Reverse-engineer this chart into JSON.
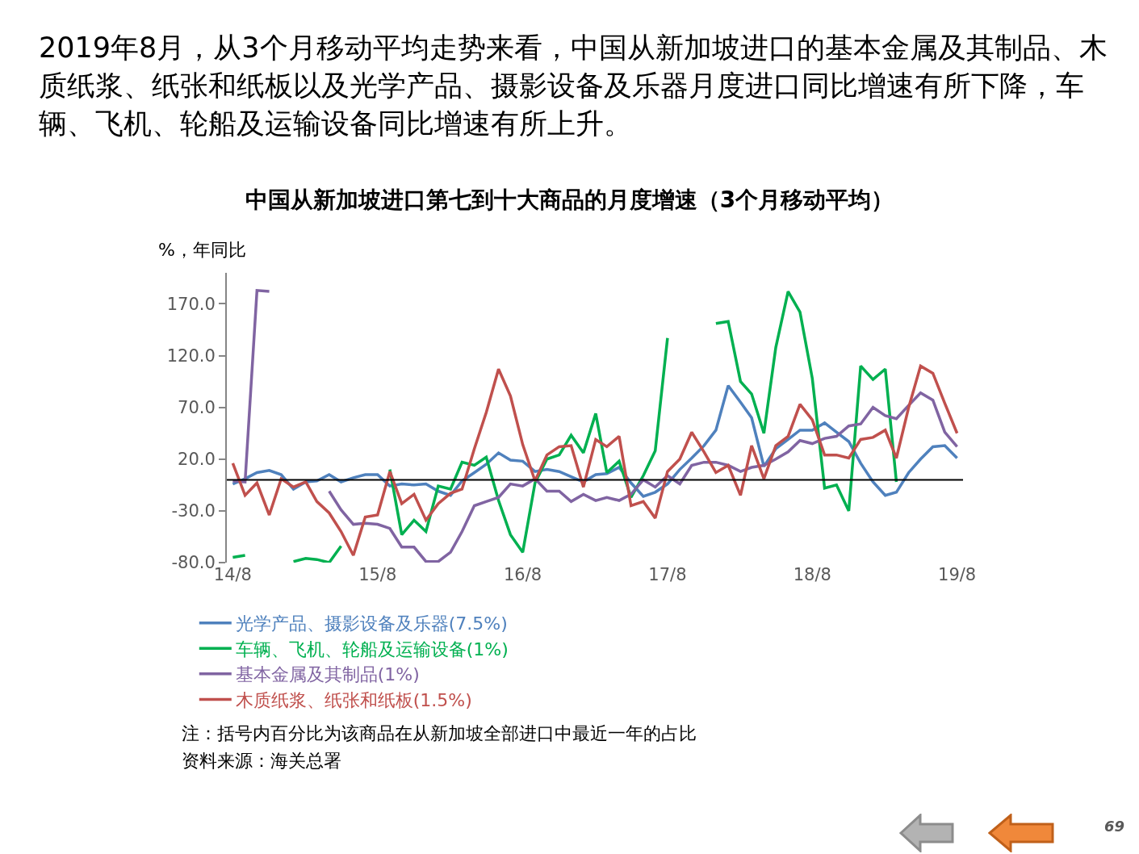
{
  "chart_data": {
    "type": "line",
    "title": "中国从新加坡进口第七到十大商品的月度增速（3个月移动平均）",
    "subtitle": "2019年8月，从3个月移动平均走势来看，中国从新加坡进口的基本金属及其制品、木质纸浆、纸张和纸板以及光学产品、摄影设备及乐器月度进口同比增速有所下降，车辆、飞机、轮船及运输设备同比增速有所上升。",
    "ylabel": "%，年同比",
    "annotations": [
      "注：括号内百分比为该商品在从新加坡全部进口中最近一年的占比",
      "资料来源：海关总署",
      "69"
    ],
    "x": [
      "2014-08",
      "2014-09",
      "2014-10",
      "2014-11",
      "2014-12",
      "2015-01",
      "2015-02",
      "2015-03",
      "2015-04",
      "2015-05",
      "2015-06",
      "2015-07",
      "2015-08",
      "2015-09",
      "2015-10",
      "2015-11",
      "2015-12",
      "2016-01",
      "2016-02",
      "2016-03",
      "2016-04",
      "2016-05",
      "2016-06",
      "2016-07",
      "2016-08",
      "2016-09",
      "2016-10",
      "2016-11",
      "2016-12",
      "2017-01",
      "2017-02",
      "2017-03",
      "2017-04",
      "2017-05",
      "2017-06",
      "2017-07",
      "2017-08",
      "2017-09",
      "2017-10",
      "2017-11",
      "2017-12",
      "2018-01",
      "2018-02",
      "2018-03",
      "2018-04",
      "2018-05",
      "2018-06",
      "2018-07",
      "2018-08",
      "2018-09",
      "2018-10",
      "2018-11",
      "2018-12",
      "2019-01",
      "2019-02",
      "2019-03",
      "2019-04",
      "2019-05",
      "2019-06",
      "2019-07",
      "2019-08"
    ],
    "series": [
      {
        "name": "光学产品、摄影设备及乐器(7.5%)",
        "color": "#4f81bd",
        "values": [
          -4,
          1,
          7,
          9,
          5,
          -9,
          -2,
          -1,
          5,
          -2,
          2,
          5,
          5,
          -6,
          -4,
          -5,
          -4,
          -11,
          -15,
          -1,
          7,
          15,
          26,
          19,
          18,
          8,
          10,
          8,
          3,
          -2,
          5,
          6,
          12,
          -3,
          -16,
          -12,
          -4,
          10,
          21,
          33,
          48,
          91,
          75,
          60,
          13,
          30,
          39,
          48,
          48,
          55,
          46,
          37,
          16,
          -2,
          -15,
          -12,
          7,
          20,
          32,
          33,
          21
        ]
      },
      {
        "name": "车辆、飞机、轮船及运输设备(1%)",
        "color": "#00b050",
        "values": [
          -75,
          -73,
          null,
          null,
          null,
          -79,
          -76,
          -77,
          -80,
          -64,
          null,
          null,
          null,
          10,
          -53,
          -39,
          -50,
          -6,
          -9,
          17,
          14,
          22,
          -20,
          -53,
          -70,
          -3,
          20,
          24,
          43,
          26,
          64,
          7,
          18,
          -17,
          4,
          28,
          137,
          null,
          null,
          null,
          151,
          153,
          95,
          83,
          45,
          128,
          182,
          162,
          98,
          -8,
          -5,
          -30,
          110,
          97,
          107,
          -2,
          null,
          null,
          null,
          null,
          null
        ]
      },
      {
        "name": "基本金属及其制品(1%)",
        "color": "#8064a2",
        "values": [
          -1,
          -2,
          183,
          182,
          null,
          null,
          null,
          null,
          -11,
          -29,
          -43,
          -42,
          -43,
          -47,
          -65,
          -65,
          -79,
          -79,
          -70,
          -50,
          -25,
          -21,
          -17,
          -4,
          -6,
          1,
          -11,
          -11,
          -21,
          -14,
          -20,
          -17,
          -20,
          -14,
          0,
          -7,
          4,
          -4,
          14,
          17,
          17,
          14,
          8,
          12,
          14,
          20,
          27,
          38,
          35,
          40,
          42,
          52,
          54,
          70,
          62,
          59,
          72,
          84,
          77,
          46,
          32
        ]
      },
      {
        "name": "木质纸浆、纸张和纸板(1.5%)",
        "color": "#c0504d",
        "values": [
          16,
          -15,
          -3,
          -34,
          1,
          -7,
          -2,
          -21,
          -32,
          -50,
          -73,
          -36,
          -34,
          8,
          -23,
          -14,
          -39,
          -23,
          -13,
          -9,
          30,
          65,
          107,
          81,
          34,
          -1,
          24,
          32,
          33,
          -7,
          39,
          32,
          42,
          -25,
          -21,
          -37,
          8,
          20,
          46,
          27,
          7,
          14,
          -15,
          33,
          1,
          33,
          42,
          73,
          58,
          24,
          24,
          21,
          39,
          41,
          48,
          21,
          70,
          110,
          103,
          74,
          45
        ]
      }
    ],
    "xlim": [
      "2014-07-17",
      "2019-08-16"
    ],
    "xticks": [
      {
        "value": "2014-08",
        "label": "14/8"
      },
      {
        "value": "2015-08",
        "label": "15/8"
      },
      {
        "value": "2016-08",
        "label": "16/8"
      },
      {
        "value": "2017-08",
        "label": "17/8"
      },
      {
        "value": "2018-08",
        "label": "18/8"
      },
      {
        "value": "2019-08",
        "label": "19/8"
      }
    ],
    "ylim": [
      -80,
      200
    ],
    "yticks": [
      {
        "value": -80,
        "label": "-80.0"
      },
      {
        "value": -30,
        "label": "-30.0"
      },
      {
        "value": 20,
        "label": "20.0"
      },
      {
        "value": 70,
        "label": "70.0"
      },
      {
        "value": 120,
        "label": "120.0"
      },
      {
        "value": 170,
        "label": "170.0"
      }
    ],
    "ref_lines": [
      {
        "axis": "y",
        "value": 0,
        "color": "#000000"
      }
    ],
    "legend": "bottom"
  }
}
